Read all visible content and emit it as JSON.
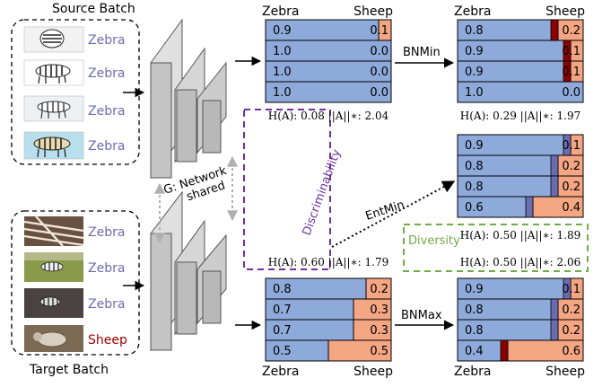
{
  "source_batch": {
    "title": "Source Batch",
    "items": [
      {
        "label": "Zebra",
        "thumb": "zebra-head-thumbnail"
      },
      {
        "label": "Zebra",
        "thumb": "zebra-thumbnail"
      },
      {
        "label": "Zebra",
        "thumb": "zebra-toy-thumbnail"
      },
      {
        "label": "Zebra",
        "thumb": "zebra-sky-thumbnail"
      }
    ]
  },
  "target_batch": {
    "title": "Target Batch",
    "items": [
      {
        "label": "Zebra",
        "thumb": "zebra-closeup-photo"
      },
      {
        "label": "Zebra",
        "thumb": "zebra-field-photo"
      },
      {
        "label": "Zebra",
        "thumb": "zebra-dark-photo"
      },
      {
        "label": "Sheep",
        "thumb": "sheep-photo"
      }
    ]
  },
  "network": {
    "label_line1": "G: Network",
    "label_line2": "shared"
  },
  "discriminability_label": "Discriminability",
  "diversity_label": "Diversity",
  "arrows": {
    "bnmin": "BNMin",
    "entmin": "EntMin",
    "bnmax": "BNMax"
  },
  "colors": {
    "zebra_bar": "#8eaadb",
    "sheep_bar": "#f4a582",
    "dark_red": "#8b0000",
    "indigo": "#6b6bb0",
    "zebra_text": "#6b6bb0",
    "sheep_text": "#a00000",
    "discriminability": "#7030a0",
    "diversity": "#70ad47"
  },
  "matrices": {
    "source": {
      "header_left": "Zebra",
      "header_right": "Sheep",
      "rows": [
        {
          "left": "0.9",
          "right": "0.1",
          "accent": ""
        },
        {
          "left": "1.0",
          "right": "0.0",
          "accent": ""
        },
        {
          "left": "1.0",
          "right": "0.0",
          "accent": ""
        },
        {
          "left": "1.0",
          "right": "0.0",
          "accent": ""
        }
      ],
      "metric": "H(A): 0.08 ||A||∗: 2.04"
    },
    "bnmin": {
      "header_left": "Zebra",
      "header_right": "Sheep",
      "rows": [
        {
          "left": "0.8",
          "right": "0.2",
          "accent": "dark"
        },
        {
          "left": "0.9",
          "right": "0.1",
          "accent": "dark"
        },
        {
          "left": "0.9",
          "right": "0.1",
          "accent": "dark"
        },
        {
          "left": "1.0",
          "right": "0.0",
          "accent": ""
        }
      ],
      "metric": "H(A): 0.29 ||A||∗: 1.97"
    },
    "entmin": {
      "rows": [
        {
          "left": "0.9",
          "right": "0.1",
          "accent": "indigo"
        },
        {
          "left": "0.8",
          "right": "0.2",
          "accent": "indigo"
        },
        {
          "left": "0.8",
          "right": "0.2",
          "accent": "indigo"
        },
        {
          "left": "0.6",
          "right": "0.4",
          "accent": "indigo"
        }
      ],
      "metric": "H(A): 0.50 ||A||∗: 1.89"
    },
    "target": {
      "header_left": "Zebra",
      "header_right": "Sheep",
      "rows": [
        {
          "left": "0.8",
          "right": "0.2",
          "accent": ""
        },
        {
          "left": "0.7",
          "right": "0.3",
          "accent": ""
        },
        {
          "left": "0.7",
          "right": "0.3",
          "accent": ""
        },
        {
          "left": "0.5",
          "right": "0.5",
          "accent": ""
        }
      ],
      "metric": "H(A): 0.60 ||A||∗: 1.79"
    },
    "bnmax": {
      "header_left": "Zebra",
      "header_right": "Sheep",
      "rows": [
        {
          "left": "0.9",
          "right": "0.1",
          "accent": "indigo"
        },
        {
          "left": "0.8",
          "right": "0.2",
          "accent": "indigo"
        },
        {
          "left": "0.8",
          "right": "0.2",
          "accent": "indigo"
        },
        {
          "left": "0.4",
          "right": "0.6",
          "accent": "dark"
        }
      ],
      "metric": "H(A): 0.50 ||A||∗: 2.06"
    }
  }
}
